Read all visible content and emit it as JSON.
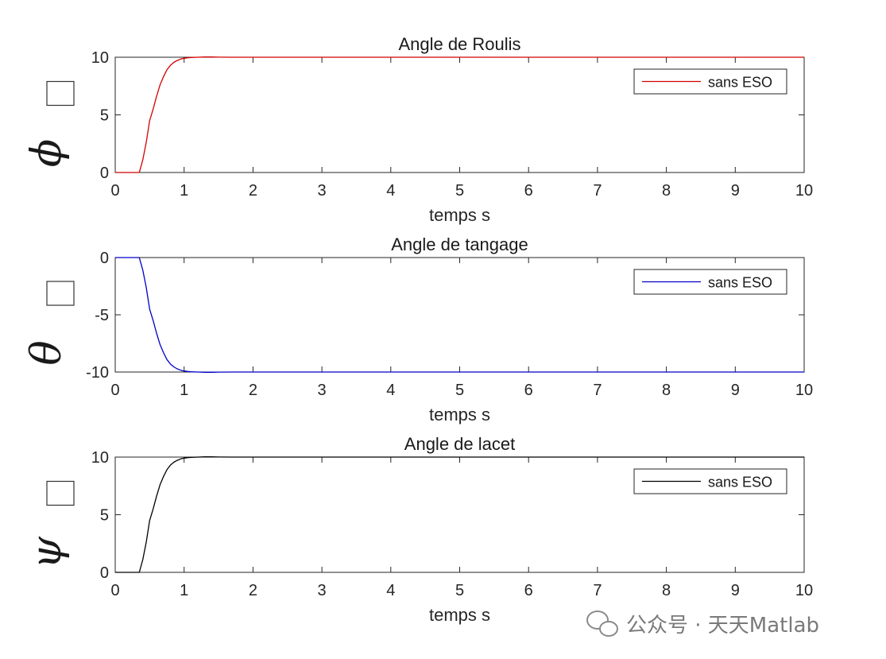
{
  "watermark": {
    "text": "公众号 · 天天Matlab"
  },
  "chart_data": [
    {
      "type": "line",
      "title": "Angle de Roulis",
      "xlabel": "temps s",
      "ylabel": "ϕ",
      "xlim": [
        0,
        10
      ],
      "ylim": [
        0,
        10
      ],
      "xticks": [
        "0",
        "1",
        "2",
        "3",
        "4",
        "5",
        "6",
        "7",
        "8",
        "9",
        "10"
      ],
      "yticks": [
        "0",
        "5",
        "10"
      ],
      "ytick_values": [
        0,
        5,
        10
      ],
      "grid": false,
      "legend_position": "top-right",
      "series": [
        {
          "name": "sans ESO",
          "color": "#d40000",
          "x": [
            0,
            0.35,
            0.4,
            0.45,
            0.5,
            0.55,
            0.6,
            0.65,
            0.7,
            0.75,
            0.8,
            0.85,
            0.9,
            0.95,
            1.0,
            1.05,
            1.1,
            1.2,
            1.3,
            1.4,
            1.5,
            1.7,
            2.0,
            3,
            4,
            5,
            6,
            7,
            8,
            9,
            10
          ],
          "y": [
            0,
            0,
            1.1,
            2.6,
            4.5,
            5.5,
            6.6,
            7.6,
            8.3,
            8.9,
            9.3,
            9.55,
            9.72,
            9.84,
            9.91,
            9.95,
            9.98,
            10.0,
            10.02,
            10.02,
            10.01,
            10.0,
            10.0,
            10,
            10,
            10,
            10,
            10,
            10,
            10,
            10
          ]
        }
      ]
    },
    {
      "type": "line",
      "title": "Angle de tangage",
      "xlabel": "temps s",
      "ylabel": "θ",
      "xlim": [
        0,
        10
      ],
      "ylim": [
        -10,
        0
      ],
      "xticks": [
        "0",
        "1",
        "2",
        "3",
        "4",
        "5",
        "6",
        "7",
        "8",
        "9",
        "10"
      ],
      "yticks": [
        "0",
        "-5",
        "-10"
      ],
      "ytick_values": [
        0,
        -5,
        -10
      ],
      "grid": false,
      "legend_position": "top-right",
      "series": [
        {
          "name": "sans ESO",
          "color": "#0000c8",
          "x": [
            0,
            0.35,
            0.4,
            0.45,
            0.5,
            0.55,
            0.6,
            0.65,
            0.7,
            0.75,
            0.8,
            0.85,
            0.9,
            0.95,
            1.0,
            1.05,
            1.1,
            1.2,
            1.3,
            1.4,
            1.5,
            1.7,
            2.0,
            3,
            4,
            5,
            6,
            7,
            8,
            9,
            10
          ],
          "y": [
            0,
            0,
            -1.1,
            -2.6,
            -4.5,
            -5.5,
            -6.6,
            -7.6,
            -8.3,
            -8.9,
            -9.3,
            -9.55,
            -9.72,
            -9.84,
            -9.91,
            -9.95,
            -9.98,
            -10.0,
            -10.02,
            -10.02,
            -10.01,
            -10.0,
            -10.0,
            -10,
            -10,
            -10,
            -10,
            -10,
            -10,
            -10,
            -10
          ]
        }
      ]
    },
    {
      "type": "line",
      "title": "Angle de lacet",
      "xlabel": "temps s",
      "ylabel": "ψ",
      "xlim": [
        0,
        10
      ],
      "ylim": [
        0,
        10
      ],
      "xticks": [
        "0",
        "1",
        "2",
        "3",
        "4",
        "5",
        "6",
        "7",
        "8",
        "9",
        "10"
      ],
      "yticks": [
        "0",
        "5",
        "10"
      ],
      "ytick_values": [
        0,
        5,
        10
      ],
      "grid": false,
      "legend_position": "top-right",
      "series": [
        {
          "name": "sans ESO",
          "color": "#000000",
          "x": [
            0,
            0.35,
            0.4,
            0.45,
            0.5,
            0.55,
            0.6,
            0.65,
            0.7,
            0.75,
            0.8,
            0.85,
            0.9,
            0.95,
            1.0,
            1.05,
            1.1,
            1.2,
            1.3,
            1.4,
            1.5,
            1.7,
            2.0,
            3,
            4,
            5,
            6,
            7,
            8,
            9,
            10
          ],
          "y": [
            0,
            0,
            1.1,
            2.6,
            4.5,
            5.5,
            6.6,
            7.6,
            8.3,
            8.9,
            9.3,
            9.55,
            9.72,
            9.84,
            9.91,
            9.95,
            9.98,
            10.0,
            10.02,
            10.02,
            10.01,
            10.0,
            10.0,
            10,
            10,
            10,
            10,
            10,
            10,
            10,
            10
          ]
        }
      ]
    }
  ]
}
